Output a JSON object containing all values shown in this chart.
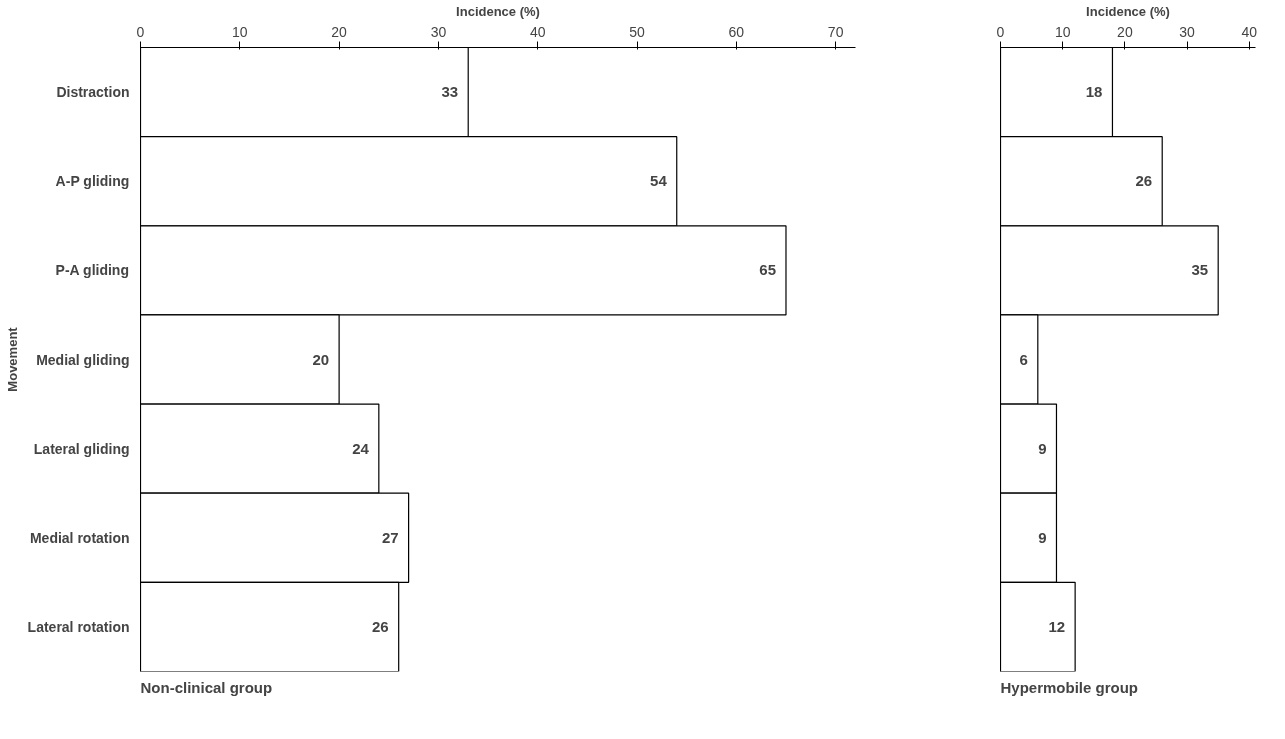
{
  "chart_data": [
    {
      "type": "bar",
      "orientation": "horizontal",
      "title": "Non-clinical group",
      "xlabel": "Incidence (%)",
      "ylabel": "Movement",
      "categories": [
        "Distraction",
        "A-P gliding",
        "P-A gliding",
        "Medial gliding",
        "Lateral gliding",
        "Medial rotation",
        "Lateral rotation"
      ],
      "values": [
        33,
        54,
        65,
        20,
        24,
        27,
        26
      ],
      "color": "#ffffff",
      "xlim": [
        0,
        72
      ],
      "xticks": [
        0,
        10,
        20,
        30,
        40,
        50,
        60,
        70
      ],
      "data_labels": true,
      "grid": false
    },
    {
      "type": "bar",
      "orientation": "horizontal",
      "title": "Hypermobile group",
      "xlabel": "Incidence (%)",
      "categories": [
        null,
        null,
        null,
        null,
        null,
        null,
        null
      ],
      "values": [
        18,
        26,
        35,
        6,
        9,
        9,
        12
      ],
      "color": "#ffffff",
      "xlim": [
        0,
        41
      ],
      "xticks": [
        0,
        10,
        20,
        30,
        40
      ],
      "data_labels": true,
      "grid": false
    }
  ]
}
